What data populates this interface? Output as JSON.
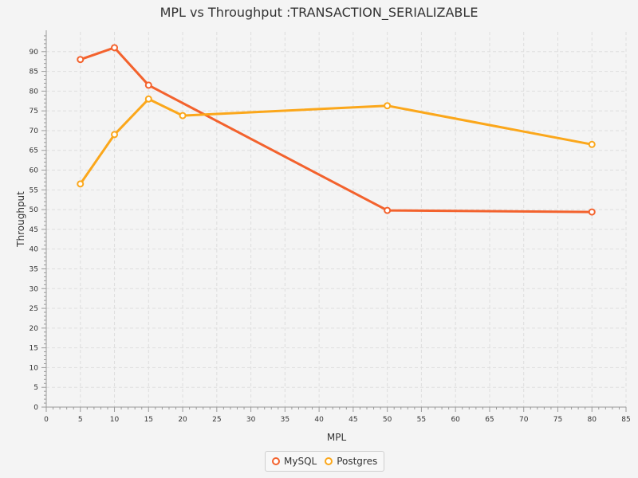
{
  "chart_data": {
    "type": "line",
    "title": "MPL vs Throughput :TRANSACTION_SERIALIZABLE",
    "xlabel": "MPL",
    "ylabel": "Throughput",
    "xlim": [
      0,
      85
    ],
    "ylim": [
      0,
      95
    ],
    "x_ticks": [
      0,
      5,
      10,
      15,
      20,
      25,
      30,
      35,
      40,
      45,
      50,
      55,
      60,
      65,
      70,
      75,
      80,
      85
    ],
    "y_ticks": [
      0,
      5,
      10,
      15,
      20,
      25,
      30,
      35,
      40,
      45,
      50,
      55,
      60,
      65,
      70,
      75,
      80,
      85,
      90
    ],
    "grid": true,
    "legend_position": "bottom",
    "series": [
      {
        "name": "MySQL",
        "color": "#f3622d",
        "points": [
          [
            5,
            88
          ],
          [
            10,
            91
          ],
          [
            15,
            81.5
          ],
          [
            50,
            49.8
          ],
          [
            80,
            49.4
          ]
        ]
      },
      {
        "name": "Postgres",
        "color": "#fba71b",
        "points": [
          [
            5,
            56.5
          ],
          [
            10,
            69
          ],
          [
            15,
            78
          ],
          [
            20,
            73.8
          ],
          [
            50,
            76.3
          ],
          [
            80,
            66.5
          ]
        ]
      }
    ]
  }
}
